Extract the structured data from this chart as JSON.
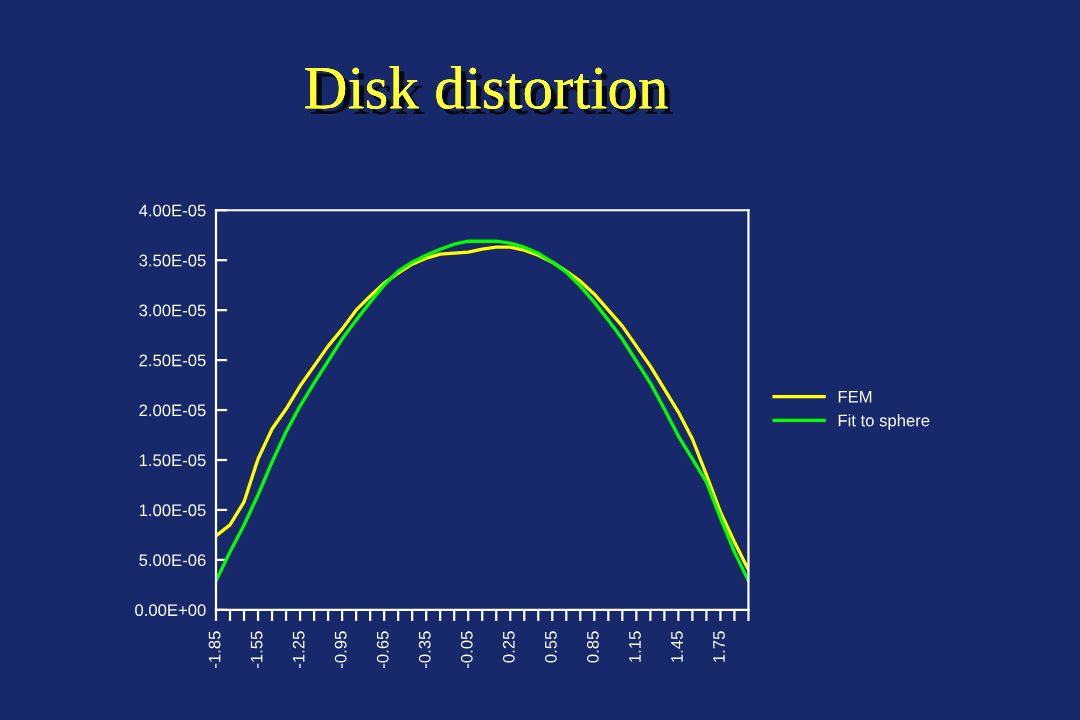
{
  "chart_data": {
    "type": "line",
    "title": "Disk distortion",
    "x": [
      -1.85,
      -1.75,
      -1.65,
      -1.55,
      -1.45,
      -1.35,
      -1.25,
      -1.15,
      -1.05,
      -0.95,
      -0.85,
      -0.75,
      -0.65,
      -0.55,
      -0.45,
      -0.35,
      -0.25,
      -0.15,
      -0.05,
      0.05,
      0.15,
      0.25,
      0.35,
      0.45,
      0.55,
      0.65,
      0.75,
      0.85,
      0.95,
      1.05,
      1.15,
      1.25,
      1.35,
      1.45,
      1.55,
      1.65,
      1.75,
      1.85,
      1.95
    ],
    "series": [
      {
        "name": "FEM",
        "color": "#ffff00",
        "values": [
          7.4e-06,
          8.5e-06,
          1.08e-05,
          1.51e-05,
          1.81e-05,
          2.01e-05,
          2.24e-05,
          2.44e-05,
          2.64e-05,
          2.81e-05,
          3e-05,
          3.14e-05,
          3.27e-05,
          3.37e-05,
          3.46e-05,
          3.52e-05,
          3.56e-05,
          3.57e-05,
          3.58e-05,
          3.61e-05,
          3.63e-05,
          3.63e-05,
          3.6e-05,
          3.55e-05,
          3.48e-05,
          3.39e-05,
          3.29e-05,
          3.16e-05,
          3e-05,
          2.84e-05,
          2.64e-05,
          2.44e-05,
          2.21e-05,
          1.98e-05,
          1.71e-05,
          1.35e-05,
          9.8e-06,
          6.8e-06,
          4e-06
        ]
      },
      {
        "name": "Fit to sphere",
        "color": "#00ff00",
        "values": [
          2.9e-06,
          5.8e-06,
          8.5e-06,
          1.15e-05,
          1.48e-05,
          1.78e-05,
          2.04e-05,
          2.27e-05,
          2.49e-05,
          2.71e-05,
          2.9e-05,
          3.08e-05,
          3.25e-05,
          3.39e-05,
          3.48e-05,
          3.55e-05,
          3.61e-05,
          3.66e-05,
          3.69e-05,
          3.69e-05,
          3.69e-05,
          3.67e-05,
          3.63e-05,
          3.57e-05,
          3.48e-05,
          3.38e-05,
          3.24e-05,
          3.08e-05,
          2.9e-05,
          2.71e-05,
          2.49e-05,
          2.27e-05,
          2.01e-05,
          1.74e-05,
          1.51e-05,
          1.28e-05,
          9.2e-06,
          5.8e-06,
          2.9e-06
        ]
      }
    ],
    "xlim": [
      -1.85,
      1.95
    ],
    "xticks": [
      {
        "value": -1.85,
        "label": "-1.85"
      },
      {
        "value": -1.75,
        "label": null
      },
      {
        "value": -1.65,
        "label": null
      },
      {
        "value": -1.55,
        "label": "-1.55"
      },
      {
        "value": -1.45,
        "label": null
      },
      {
        "value": -1.35,
        "label": null
      },
      {
        "value": -1.25,
        "label": "-1.25"
      },
      {
        "value": -1.15,
        "label": null
      },
      {
        "value": -1.05,
        "label": null
      },
      {
        "value": -0.95,
        "label": "-0.95"
      },
      {
        "value": -0.85,
        "label": null
      },
      {
        "value": -0.75,
        "label": null
      },
      {
        "value": -0.65,
        "label": "-0.65"
      },
      {
        "value": -0.55,
        "label": null
      },
      {
        "value": -0.45,
        "label": null
      },
      {
        "value": -0.35,
        "label": "-0.35"
      },
      {
        "value": -0.25,
        "label": null
      },
      {
        "value": -0.15,
        "label": null
      },
      {
        "value": -0.05,
        "label": "-0.05"
      },
      {
        "value": 0.05,
        "label": null
      },
      {
        "value": 0.15,
        "label": null
      },
      {
        "value": 0.25,
        "label": "0.25"
      },
      {
        "value": 0.35,
        "label": null
      },
      {
        "value": 0.45,
        "label": null
      },
      {
        "value": 0.55,
        "label": "0.55"
      },
      {
        "value": 0.65,
        "label": null
      },
      {
        "value": 0.75,
        "label": null
      },
      {
        "value": 0.85,
        "label": "0.85"
      },
      {
        "value": 0.95,
        "label": null
      },
      {
        "value": 1.05,
        "label": null
      },
      {
        "value": 1.15,
        "label": "1.15"
      },
      {
        "value": 1.25,
        "label": null
      },
      {
        "value": 1.35,
        "label": null
      },
      {
        "value": 1.45,
        "label": "1.45"
      },
      {
        "value": 1.55,
        "label": null
      },
      {
        "value": 1.65,
        "label": null
      },
      {
        "value": 1.75,
        "label": "1.75"
      },
      {
        "value": 1.85,
        "label": null
      },
      {
        "value": 1.95,
        "label": null
      }
    ],
    "ylim": [
      0,
      4e-05
    ],
    "yticks": [
      {
        "value": 0,
        "label": "0.00E+00"
      },
      {
        "value": 5e-06,
        "label": "5.00E-06"
      },
      {
        "value": 1e-05,
        "label": "1.00E-05"
      },
      {
        "value": 1.5e-05,
        "label": "1.50E-05"
      },
      {
        "value": 2e-05,
        "label": "2.00E-05"
      },
      {
        "value": 2.5e-05,
        "label": "2.50E-05"
      },
      {
        "value": 3e-05,
        "label": "3.00E-05"
      },
      {
        "value": 3.5e-05,
        "label": "3.50E-05"
      },
      {
        "value": 4e-05,
        "label": "4.00E-05"
      }
    ],
    "grid": false,
    "legend": "right",
    "marker": "none",
    "line_style": "solid"
  }
}
